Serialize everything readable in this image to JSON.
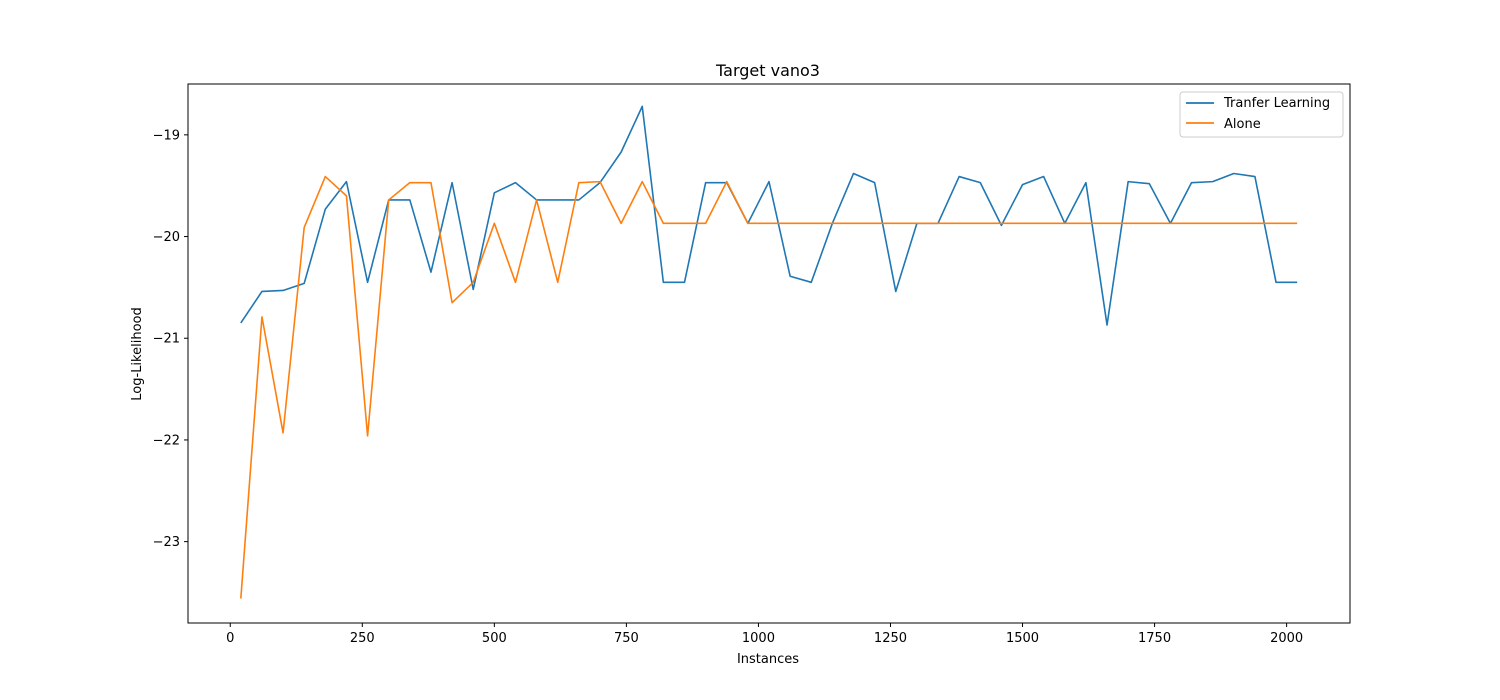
{
  "chart_data": {
    "type": "line",
    "title": "Target vano3",
    "xlabel": "Instances",
    "ylabel": "Log-Likelihood",
    "xlim": [
      -80,
      2120
    ],
    "ylim": [
      -23.8,
      -18.5
    ],
    "xticks": [
      0,
      250,
      500,
      750,
      1000,
      1250,
      1500,
      1750,
      2000
    ],
    "yticks": [
      -23,
      -22,
      -21,
      -20,
      -19
    ],
    "ytick_labels": [
      "−23",
      "−22",
      "−21",
      "−20",
      "−19"
    ],
    "grid": false,
    "legend_position": "top-right",
    "x": [
      20,
      60,
      100,
      140,
      180,
      220,
      260,
      300,
      340,
      380,
      420,
      460,
      500,
      540,
      580,
      620,
      660,
      700,
      740,
      780,
      820,
      860,
      900,
      940,
      980,
      1020,
      1060,
      1100,
      1140,
      1180,
      1220,
      1260,
      1300,
      1340,
      1380,
      1420,
      1460,
      1500,
      1540,
      1580,
      1620,
      1660,
      1700,
      1740,
      1780,
      1820,
      1860,
      1900,
      1940,
      1980,
      2020
    ],
    "series": [
      {
        "name": "Tranfer Learning",
        "color": "#1f77b4",
        "values": [
          -20.85,
          -20.54,
          -20.53,
          -20.46,
          -19.73,
          -19.46,
          -20.45,
          -19.64,
          -19.64,
          -20.35,
          -19.47,
          -20.52,
          -19.57,
          -19.47,
          -19.64,
          -19.64,
          -19.64,
          -19.47,
          -19.17,
          -18.72,
          -20.45,
          -20.45,
          -19.47,
          -19.47,
          -19.87,
          -19.46,
          -20.39,
          -20.45,
          -19.87,
          -19.38,
          -19.47,
          -20.54,
          -19.87,
          -19.87,
          -19.41,
          -19.47,
          -19.89,
          -19.49,
          -19.41,
          -19.87,
          -19.47,
          -20.87,
          -19.46,
          -19.48,
          -19.87,
          -19.47,
          -19.46,
          -19.38,
          -19.41,
          -20.45,
          -20.45
        ]
      },
      {
        "name": "Alone",
        "color": "#ff7f0e",
        "values": [
          -23.56,
          -20.79,
          -21.93,
          -19.91,
          -19.41,
          -19.6,
          -21.96,
          -19.64,
          -19.47,
          -19.47,
          -20.65,
          -20.45,
          -19.87,
          -20.45,
          -19.64,
          -20.45,
          -19.47,
          -19.46,
          -19.87,
          -19.46,
          -19.87,
          -19.87,
          -19.87,
          -19.46,
          -19.87,
          -19.87,
          -19.87,
          -19.87,
          -19.87,
          -19.87,
          -19.87,
          -19.87,
          -19.87,
          -19.87,
          -19.87,
          -19.87,
          -19.87,
          -19.87,
          -19.87,
          -19.87,
          -19.87,
          -19.87,
          -19.87,
          -19.87,
          -19.87,
          -19.87,
          -19.87,
          -19.87,
          -19.87,
          -19.87,
          -19.87
        ]
      }
    ]
  }
}
